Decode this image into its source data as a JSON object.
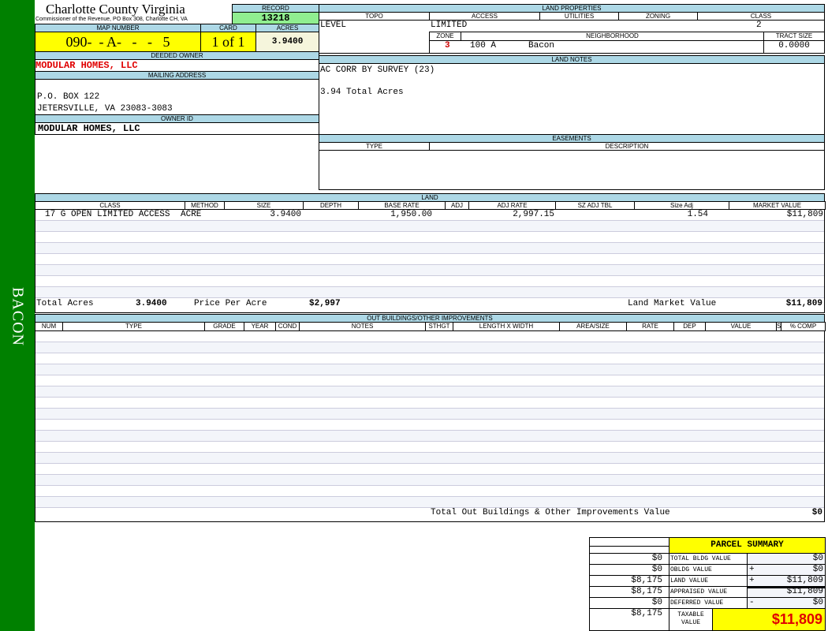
{
  "sidebar": {
    "label": "BACON",
    "color": "#008000"
  },
  "header": {
    "title": "Charlotte County Virginia",
    "subtitle": "Commissioner of the Revenue, PO Box 308, Charlotte CH, VA"
  },
  "record": {
    "label": "RECORD",
    "value": "13218"
  },
  "map": {
    "label": "MAP NUMBER",
    "value": "090-  - A-   -   -   5",
    "card_label": "CARD",
    "card": "1 of 1",
    "acres_label": "ACRES",
    "acres": "3.9400"
  },
  "owner": {
    "deeded_label": "DEEDED OWNER",
    "deeded": "MODULAR HOMES, LLC",
    "mailing_label": "MAILING ADDRESS",
    "address1": "P.O. BOX 122",
    "address2": "JETERSVILLE, VA 23083-3083",
    "id_label": "OWNER ID",
    "id": "MODULAR HOMES, LLC"
  },
  "land_properties": {
    "label": "LAND PROPERTIES",
    "topo_label": "TOPO",
    "access_label": "ACCESS",
    "utilities_label": "UTILITIES",
    "zoning_label": "ZONING",
    "class_label": "CLASS",
    "topo": "LEVEL",
    "access": "LIMITED",
    "class": "2",
    "zone_label": "ZONE",
    "neighborhood_label": "NEIGHBORHOOD",
    "tract_label": "TRACT SIZE",
    "zone": "3",
    "neighborhood_code": "100 A",
    "neighborhood": "Bacon",
    "tract": "0.0000"
  },
  "land_notes": {
    "label": "LAND NOTES",
    "line1": "AC CORR BY SURVEY (23)",
    "line2": "3.94 Total Acres"
  },
  "easements": {
    "label": "EASEMENTS",
    "type_label": "TYPE",
    "description_label": "DESCRIPTION"
  },
  "land": {
    "label": "LAND",
    "columns": [
      "CLASS",
      "METHOD",
      "SIZE",
      "DEPTH",
      "BASE RATE",
      "ADJ",
      "ADJ RATE",
      "SZ ADJ TBL",
      "Size Adj",
      "MARKET VALUE"
    ],
    "rows": [
      [
        "17 G OPEN LIMITED ACCESS",
        "ACRE",
        "3.9400",
        "",
        "1,950.00",
        "",
        "2,997.15",
        "",
        "1.54",
        "$11,809"
      ]
    ],
    "total_acres_label": "Total Acres",
    "total_acres": "3.9400",
    "price_label": "Price Per Acre",
    "price": "$2,997",
    "market_label": "Land Market Value",
    "market": "$11,809"
  },
  "outbuildings": {
    "label": "OUT BUILDINGS/OTHER IMPROVEMENTS",
    "columns": [
      "NUM",
      "TYPE",
      "GRADE",
      "YEAR",
      "COND",
      "NOTES",
      "STHGT",
      "LENGTH X WIDTH",
      "AREA/SIZE",
      "RATE",
      "DEP",
      "VALUE",
      "S",
      "% COMP"
    ],
    "total_label": "Total Out Buildings & Other Improvements Value",
    "total": "$0"
  },
  "summary": {
    "title": "PARCEL SUMMARY",
    "rows": [
      {
        "prior": "$0",
        "label": "TOTAL BLDG VALUE",
        "op": "",
        "value": "$0"
      },
      {
        "prior": "$0",
        "label": "OBLDG VALUE",
        "op": "+",
        "value": "$0"
      },
      {
        "prior": "$8,175",
        "label": "LAND VALUE",
        "op": "+",
        "value": "$11,809"
      },
      {
        "prior": "$8,175",
        "label": "APPRAISED VALUE",
        "op": "",
        "value": "$11,809"
      },
      {
        "prior": "$0",
        "label": "DEFERRED VALUE",
        "op": "-",
        "value": "$0"
      }
    ],
    "taxable_prior": "$8,175",
    "taxable_label": "TAXABLE VALUE",
    "taxable": "$11,809"
  }
}
